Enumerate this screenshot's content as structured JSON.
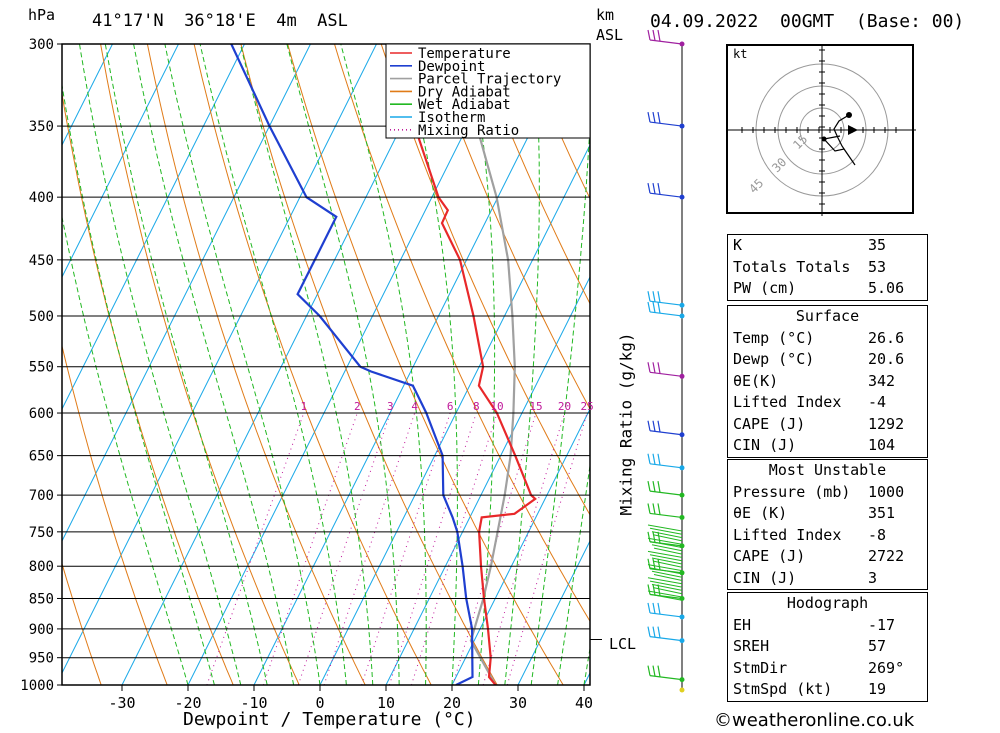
{
  "header": {
    "unit_left": "hPa",
    "location": "41°17'N  36°18'E  4m  ASL",
    "unit_km": "km",
    "unit_asl": "ASL",
    "datetime": "04.09.2022  00GMT  (Base: 00)"
  },
  "axes": {
    "xlabel": "Dewpoint / Temperature (°C)",
    "mixing_label": "Mixing Ratio (g/kg)",
    "lcl_label": "LCL"
  },
  "legend": [
    "Temperature",
    "Dewpoint",
    "Parcel Trajectory",
    "Dry Adiabat",
    "Wet Adiabat",
    "Isotherm",
    "Mixing Ratio"
  ],
  "colors": {
    "temperature": "#e8282a",
    "dewpoint": "#1f3fd0",
    "parcel": "#a0a0a0",
    "dry_adiabat": "#e07b18",
    "wet_adiabat": "#22b822",
    "isotherm": "#18a8e8",
    "mixing_ratio": "#c0189a"
  },
  "chart_data": {
    "type": "skew-t",
    "pressure_levels": [
      300,
      350,
      400,
      450,
      500,
      550,
      600,
      650,
      700,
      750,
      800,
      850,
      900,
      950,
      1000
    ],
    "x_ticks": [
      -30,
      -20,
      -10,
      0,
      10,
      20,
      30,
      40
    ],
    "mixing_ratio_labels": [
      "1",
      "2",
      "3",
      "4",
      "6",
      "8",
      "10",
      "15",
      "20",
      "25"
    ],
    "temperature": [
      {
        "p": 1000,
        "t": 26.6
      },
      {
        "p": 985,
        "t": 25
      },
      {
        "p": 950,
        "t": 23.8
      },
      {
        "p": 900,
        "t": 21.2
      },
      {
        "p": 850,
        "t": 18.3
      },
      {
        "p": 800,
        "t": 15.4
      },
      {
        "p": 750,
        "t": 12.5
      },
      {
        "p": 730,
        "t": 11.8
      },
      {
        "p": 725,
        "t": 16.5
      },
      {
        "p": 705,
        "t": 18.5
      },
      {
        "p": 700,
        "t": 17.6
      },
      {
        "p": 650,
        "t": 12.2
      },
      {
        "p": 600,
        "t": 6.2
      },
      {
        "p": 570,
        "t": 1.4
      },
      {
        "p": 550,
        "t": 0.6
      },
      {
        "p": 500,
        "t": -4.7
      },
      {
        "p": 450,
        "t": -11
      },
      {
        "p": 420,
        "t": -16.5
      },
      {
        "p": 410,
        "t": -16.6
      },
      {
        "p": 400,
        "t": -19
      },
      {
        "p": 350,
        "t": -28
      },
      {
        "p": 300,
        "t": -38
      }
    ],
    "dewpoint": [
      {
        "p": 1000,
        "t": 20.6
      },
      {
        "p": 985,
        "t": 22.5
      },
      {
        "p": 950,
        "t": 21
      },
      {
        "p": 900,
        "t": 18.8
      },
      {
        "p": 850,
        "t": 15.6
      },
      {
        "p": 800,
        "t": 12.6
      },
      {
        "p": 750,
        "t": 9.2
      },
      {
        "p": 730,
        "t": 7.4
      },
      {
        "p": 700,
        "t": 4.3
      },
      {
        "p": 650,
        "t": 1.2
      },
      {
        "p": 600,
        "t": -4.5
      },
      {
        "p": 580,
        "t": -7.2
      },
      {
        "p": 570,
        "t": -8.6
      },
      {
        "p": 555,
        "t": -16
      },
      {
        "p": 550,
        "t": -18
      },
      {
        "p": 500,
        "t": -28
      },
      {
        "p": 480,
        "t": -33
      },
      {
        "p": 450,
        "t": -33
      },
      {
        "p": 415,
        "t": -33
      },
      {
        "p": 400,
        "t": -39
      },
      {
        "p": 350,
        "t": -50
      },
      {
        "p": 300,
        "t": -62
      }
    ],
    "parcel": [
      {
        "p": 1000,
        "t": 26.6
      },
      {
        "p": 920,
        "t": 19.5
      },
      {
        "p": 850,
        "t": 18.2
      },
      {
        "p": 800,
        "t": 16.9
      },
      {
        "p": 750,
        "t": 15.3
      },
      {
        "p": 700,
        "t": 13.6
      },
      {
        "p": 650,
        "t": 11.5
      },
      {
        "p": 600,
        "t": 8.7
      },
      {
        "p": 550,
        "t": 5.4
      },
      {
        "p": 500,
        "t": 1.2
      },
      {
        "p": 450,
        "t": -3.7
      },
      {
        "p": 400,
        "t": -10.2
      },
      {
        "p": 350,
        "t": -18.6
      },
      {
        "p": 300,
        "t": -29.2
      }
    ],
    "lcl_pressure": 925,
    "hodograph_rings": [
      "15",
      "30",
      "45"
    ],
    "hodograph_unit": "kt"
  },
  "indices": [
    {
      "label": "K",
      "value": "35"
    },
    {
      "label": "Totals Totals",
      "value": "53"
    },
    {
      "label": "PW (cm)",
      "value": "5.06"
    }
  ],
  "surface": {
    "title": "Surface",
    "rows": [
      {
        "label": "Temp (°C)",
        "value": "26.6"
      },
      {
        "label": "Dewp (°C)",
        "value": "20.6"
      },
      {
        "label": "θE(K)",
        "value": "342"
      },
      {
        "label": "Lifted Index",
        "value": "-4"
      },
      {
        "label": "CAPE (J)",
        "value": "1292"
      },
      {
        "label": "CIN (J)",
        "value": "104"
      }
    ]
  },
  "most_unstable": {
    "title": "Most Unstable",
    "rows": [
      {
        "label": "Pressure (mb)",
        "value": "1000"
      },
      {
        "label": "θE (K)",
        "value": "351"
      },
      {
        "label": "Lifted Index",
        "value": "-8"
      },
      {
        "label": "CAPE (J)",
        "value": "2722"
      },
      {
        "label": "CIN (J)",
        "value": "3"
      }
    ]
  },
  "hodograph_stats": {
    "title": "Hodograph",
    "rows": [
      {
        "label": "EH",
        "value": "-17"
      },
      {
        "label": "SREH",
        "value": "57"
      },
      {
        "label": "StmDir",
        "value": "269°"
      },
      {
        "label": "StmSpd (kt)",
        "value": "19"
      }
    ]
  },
  "footer": "©weatheronline.co.uk"
}
